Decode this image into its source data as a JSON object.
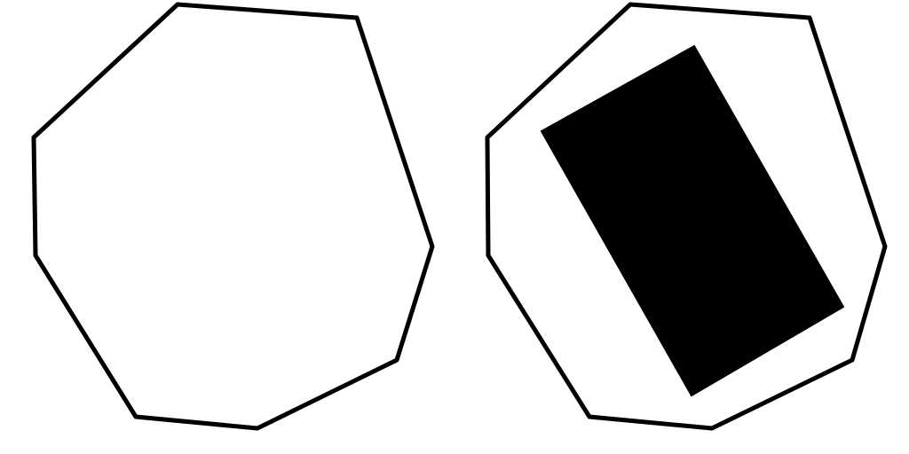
{
  "colors": {
    "background": "#ffffff",
    "stroke": "#000000",
    "fill": "#000000"
  },
  "figures": [
    {
      "shape": "octagon-outline",
      "filled_inner_shape": false
    },
    {
      "shape": "octagon-outline",
      "filled_inner_shape": true,
      "inner_shape": "rectangle"
    }
  ]
}
